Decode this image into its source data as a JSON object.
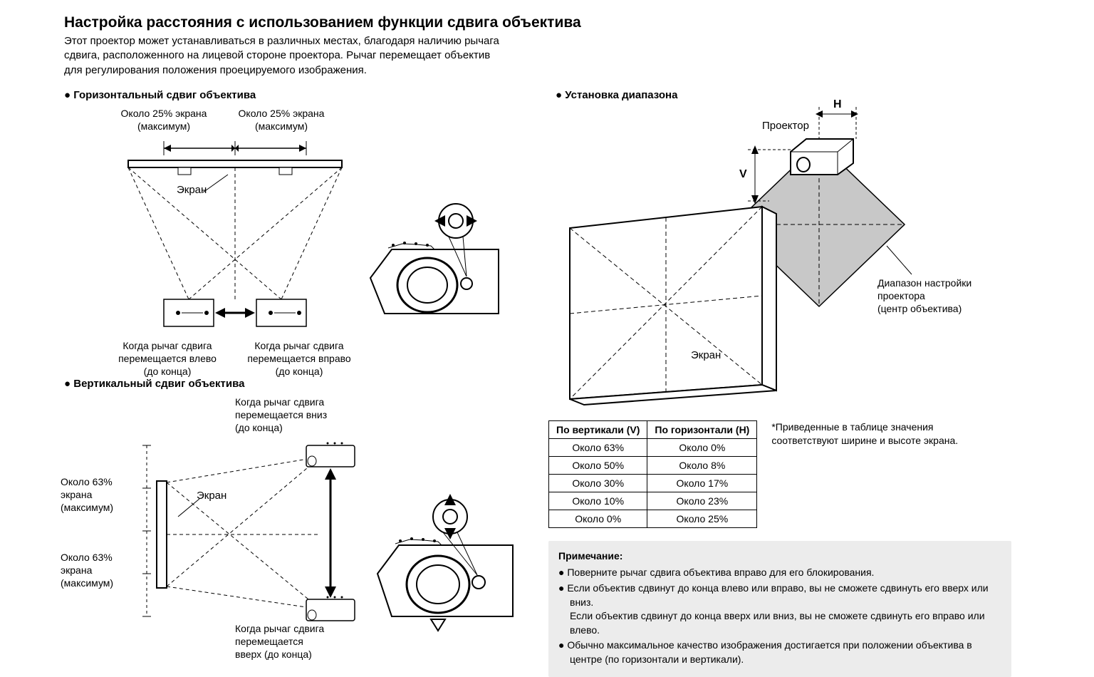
{
  "title": "Настройка расстояния с использованием функции сдвига объектива",
  "intro": "Этот проектор может устанавливаться в различных местах, благодаря наличию рычага сдвига, расположенного на лицевой стороне проектора. Рычаг перемещает объектив для регулирования положения проецируемого изображения.",
  "hshift": {
    "title": "Горизонтальный сдвиг объектива",
    "left_label": "Около 25% экрана\n(максимум)",
    "right_label": "Около 25% экрана\n(максимум)",
    "screen_label": "Экран",
    "caption_left": "Когда рычаг сдвига\nперемещается влево\n(до конца)",
    "caption_right": "Когда рычаг сдвига\nперемещается вправо\n(до конца)"
  },
  "vshift": {
    "title": "Вертикальный сдвиг объектива",
    "caption_top": "Когда рычаг сдвига\nперемещается вниз\n(до конца)",
    "caption_bottom": "Когда рычаг сдвига\nперемещается\nвверх (до конца)",
    "top_label": "Около 63%\nэкрана\n(максимум)",
    "bottom_label": "Около 63%\nэкрана\n(максимум)",
    "screen_label": "Экран"
  },
  "range": {
    "title": "Установка диапазона",
    "proj_label": "Проектор",
    "h_label": "H",
    "v_label": "V",
    "screen_label": "Экран",
    "range_label": "Диапазон настройки\nпроектора\n(центр объектива)"
  },
  "table": {
    "header_v": "По вертикали (V)",
    "header_h": "По горизонтали (H)",
    "rows": [
      [
        "Около 63%",
        "Около 0%"
      ],
      [
        "Около 50%",
        "Около 8%"
      ],
      [
        "Около 30%",
        "Около 17%"
      ],
      [
        "Около 10%",
        "Около 23%"
      ],
      [
        "Около 0%",
        "Около 25%"
      ]
    ],
    "note": "*Приведенные в таблице значения соответствуют ширине и высоте экрана."
  },
  "notes": {
    "heading": "Примечание:",
    "items": [
      "Поверните рычаг сдвига объектива вправо для его блокирования.",
      "Если объектив сдвинут до конца влево или вправо, вы не сможете сдвинуть его вверх или вниз.\nЕсли объектив сдвинут до конца вверх или вниз, вы не сможете сдвинуть его вправо или влево.",
      "Обычно максимальное качество изображения достигается при положении объектива в центре (по горизонтали и вертикали)."
    ]
  },
  "colors": {
    "text": "#000000",
    "bg": "#ffffff",
    "notes_bg": "#ececec",
    "shade": "#c8c8c8",
    "stroke": "#000000"
  }
}
